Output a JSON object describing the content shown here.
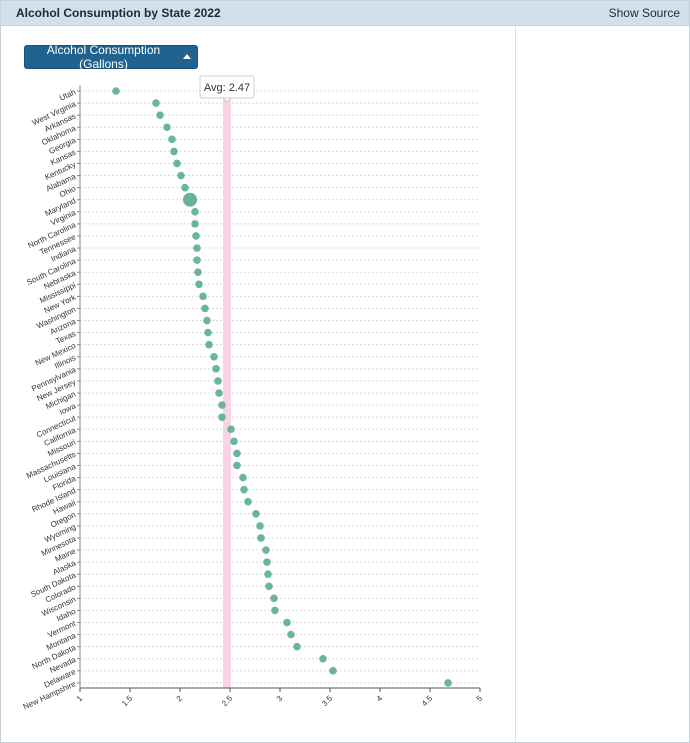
{
  "header": {
    "title": "Alcohol Consumption by State 2022",
    "show_source_label": "Show Source"
  },
  "controls": {
    "metric_button_label": "Alcohol Consumption (Gallons)"
  },
  "colors": {
    "point": "#5faf95",
    "highlight_point": "#5faf95",
    "average_band": "#f8cce3",
    "grid": "#d9d9d9"
  },
  "chart_data": {
    "type": "scatter",
    "title": "",
    "xlabel": "",
    "ylabel": "",
    "xlim": [
      1,
      5
    ],
    "x_ticks": [
      "1",
      "1.5",
      "2",
      "2.5",
      "3",
      "3.5",
      "4",
      "4.5",
      "5"
    ],
    "average": {
      "label": "Avg: 2.47",
      "value": 2.47
    },
    "highlighted": "Maryland",
    "points": [
      {
        "state": "Utah",
        "value": 1.36
      },
      {
        "state": "West Virginia",
        "value": 1.76
      },
      {
        "state": "Arkansas",
        "value": 1.8
      },
      {
        "state": "Oklahoma",
        "value": 1.87
      },
      {
        "state": "Georgia",
        "value": 1.92
      },
      {
        "state": "Kansas",
        "value": 1.94
      },
      {
        "state": "Kentucky",
        "value": 1.97
      },
      {
        "state": "Alabama",
        "value": 2.01
      },
      {
        "state": "Ohio",
        "value": 2.05
      },
      {
        "state": "Maryland",
        "value": 2.1
      },
      {
        "state": "Virginia",
        "value": 2.15
      },
      {
        "state": "North Carolina",
        "value": 2.15
      },
      {
        "state": "Tennessee",
        "value": 2.16
      },
      {
        "state": "Indiana",
        "value": 2.17
      },
      {
        "state": "South Carolina",
        "value": 2.17
      },
      {
        "state": "Nebraska",
        "value": 2.18
      },
      {
        "state": "Mississippi",
        "value": 2.19
      },
      {
        "state": "New York",
        "value": 2.23
      },
      {
        "state": "Washington",
        "value": 2.25
      },
      {
        "state": "Arizona",
        "value": 2.27
      },
      {
        "state": "Texas",
        "value": 2.28
      },
      {
        "state": "New Mexico",
        "value": 2.29
      },
      {
        "state": "Illinois",
        "value": 2.34
      },
      {
        "state": "Pennsylvania",
        "value": 2.36
      },
      {
        "state": "New Jersey",
        "value": 2.38
      },
      {
        "state": "Michigan",
        "value": 2.39
      },
      {
        "state": "Iowa",
        "value": 2.42
      },
      {
        "state": "Connecticut",
        "value": 2.42
      },
      {
        "state": "California",
        "value": 2.51
      },
      {
        "state": "Missouri",
        "value": 2.54
      },
      {
        "state": "Massachusetts",
        "value": 2.57
      },
      {
        "state": "Louisiana",
        "value": 2.57
      },
      {
        "state": "Florida",
        "value": 2.63
      },
      {
        "state": "Rhode Island",
        "value": 2.64
      },
      {
        "state": "Hawaii",
        "value": 2.68
      },
      {
        "state": "Oregon",
        "value": 2.76
      },
      {
        "state": "Wyoming",
        "value": 2.8
      },
      {
        "state": "Minnesota",
        "value": 2.81
      },
      {
        "state": "Maine",
        "value": 2.86
      },
      {
        "state": "Alaska",
        "value": 2.87
      },
      {
        "state": "South Dakota",
        "value": 2.88
      },
      {
        "state": "Colorado",
        "value": 2.89
      },
      {
        "state": "Wisconsin",
        "value": 2.94
      },
      {
        "state": "Idaho",
        "value": 2.95
      },
      {
        "state": "Vermont",
        "value": 3.07
      },
      {
        "state": "Montana",
        "value": 3.11
      },
      {
        "state": "North Dakota",
        "value": 3.17
      },
      {
        "state": "Nevada",
        "value": 3.43
      },
      {
        "state": "Delaware",
        "value": 3.53
      },
      {
        "state": "New Hampshire",
        "value": 4.68
      }
    ]
  }
}
